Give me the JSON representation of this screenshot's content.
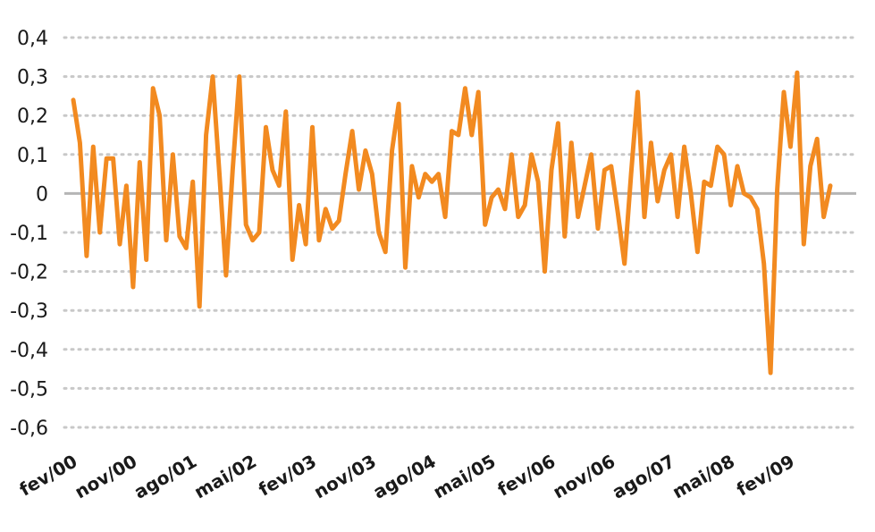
{
  "colors": {
    "line": "#F28A20",
    "grid": "#c8c8c8",
    "zero": "#b5b5b5",
    "text": "#1a1a1a",
    "background": "#ffffff"
  },
  "chart_data": {
    "type": "line",
    "title": "",
    "xlabel": "",
    "ylabel": "",
    "ylim": [
      -0.6,
      0.4
    ],
    "grid": true,
    "grid_style": "dotted",
    "legend": "none",
    "y_ticks": [
      0.4,
      0.3,
      0.2,
      0.1,
      0,
      -0.1,
      -0.2,
      -0.3,
      -0.4,
      -0.5,
      -0.6
    ],
    "y_tick_labels": [
      "0,4",
      "0,3",
      "0,2",
      "0,1",
      "0",
      "-0,1",
      "-0,2",
      "-0,3",
      "-0,4",
      "-0,5",
      "-0,6"
    ],
    "x_tick_labels": [
      "fev/00",
      "nov/00",
      "ago/01",
      "mai/02",
      "fev/03",
      "nov/03",
      "ago/04",
      "mai/05",
      "fev/06",
      "nov/06",
      "ago/07",
      "mai/08",
      "fev/09"
    ],
    "x_tick_months_from_start": [
      0,
      9,
      18,
      27,
      36,
      45,
      54,
      63,
      72,
      81,
      90,
      99,
      108
    ],
    "x_start_month": "fev/00",
    "frequency": "monthly",
    "series": [
      {
        "values": [
          0.24,
          0.13,
          -0.16,
          0.12,
          -0.1,
          0.09,
          0.09,
          -0.13,
          0.02,
          -0.24,
          0.08,
          -0.17,
          0.27,
          0.2,
          -0.12,
          0.1,
          -0.11,
          -0.14,
          0.03,
          -0.29,
          0.15,
          0.3,
          0.05,
          -0.21,
          0.06,
          0.3,
          -0.08,
          -0.12,
          -0.1,
          0.17,
          0.06,
          0.02,
          0.21,
          -0.17,
          -0.03,
          -0.13,
          0.17,
          -0.12,
          -0.04,
          -0.09,
          -0.07,
          0.05,
          0.16,
          0.01,
          0.11,
          0.05,
          -0.1,
          -0.15,
          0.11,
          0.23,
          -0.19,
          0.07,
          -0.01,
          0.05,
          0.03,
          0.05,
          -0.06,
          0.16,
          0.15,
          0.27,
          0.15,
          0.26,
          -0.08,
          -0.01,
          0.01,
          -0.04,
          0.1,
          -0.06,
          -0.03,
          0.1,
          0.03,
          -0.2,
          0.06,
          0.18,
          -0.11,
          0.13,
          -0.06,
          0.02,
          0.1,
          -0.09,
          0.06,
          0.07,
          -0.05,
          -0.18,
          0.05,
          0.26,
          -0.06,
          0.13,
          -0.02,
          0.06,
          0.1,
          -0.06,
          0.12,
          0.0,
          -0.15,
          0.03,
          0.02,
          0.12,
          0.1,
          -0.03,
          0.07,
          0.0,
          -0.01,
          -0.04,
          -0.18,
          -0.46,
          0.01,
          0.26,
          0.12,
          0.31,
          -0.13,
          0.07,
          0.14,
          -0.06,
          0.02
        ]
      }
    ]
  }
}
